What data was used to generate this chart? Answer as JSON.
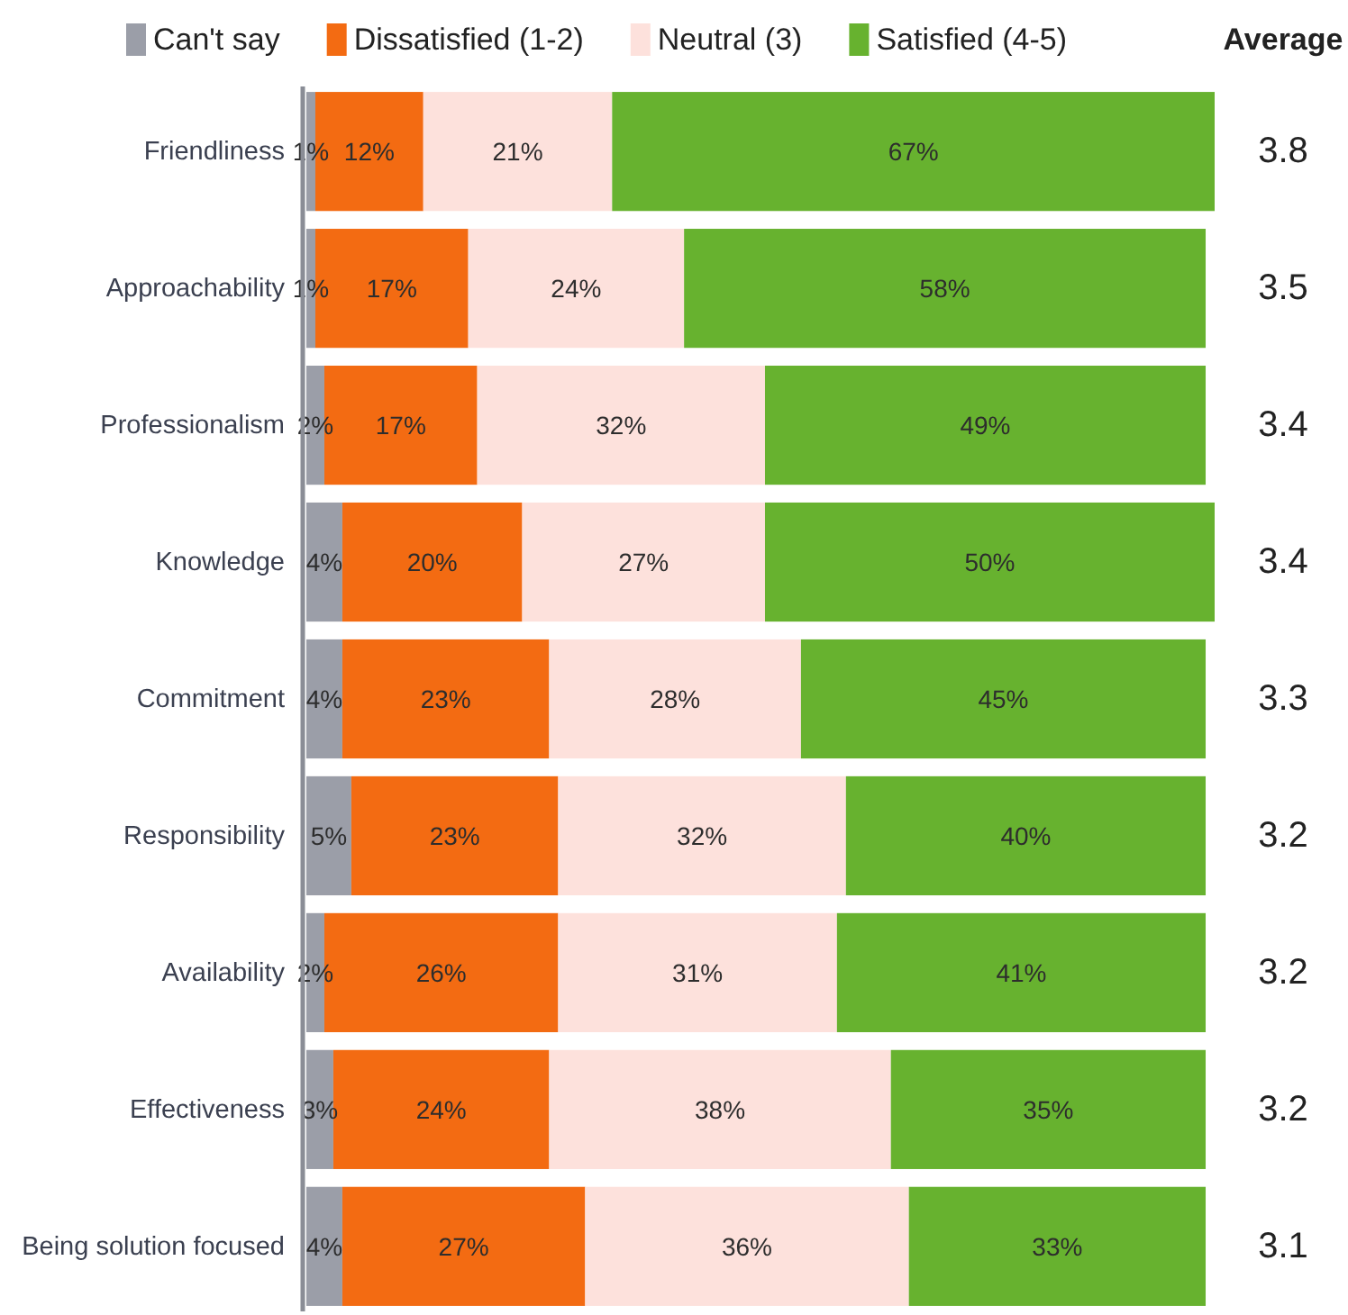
{
  "chart_data": {
    "type": "bar",
    "orientation": "horizontal",
    "stacked": true,
    "legend": "top",
    "tick_labels": "y",
    "xlim": [
      0,
      101
    ],
    "categories": [
      "Friendliness",
      "Approachability",
      "Professionalism",
      "Knowledge",
      "Commitment",
      "Responsibility",
      "Availability",
      "Effectiveness",
      "Being solution focused"
    ],
    "series": [
      {
        "name": "Can't say",
        "color": "#9b9ea8",
        "values": [
          1,
          1,
          2,
          4,
          4,
          5,
          2,
          3,
          4
        ],
        "value_labels": [
          "1%",
          "1%",
          "2%",
          "4%",
          "4%",
          "5%",
          "2%",
          "3%",
          "4%"
        ]
      },
      {
        "name": "Dissatisfied (1-2)",
        "color": "#f36b12",
        "values": [
          12,
          17,
          17,
          20,
          23,
          23,
          26,
          24,
          27
        ],
        "value_labels": [
          "12%",
          "17%",
          "17%",
          "20%",
          "23%",
          "23%",
          "26%",
          "24%",
          "27%"
        ]
      },
      {
        "name": "Neutral (3)",
        "color": "#fde1dc",
        "values": [
          21,
          24,
          32,
          27,
          28,
          32,
          31,
          38,
          36
        ],
        "value_labels": [
          "21%",
          "24%",
          "32%",
          "27%",
          "28%",
          "32%",
          "31%",
          "38%",
          "36%"
        ]
      },
      {
        "name": "Satisfied (4-5)",
        "color": "#67b22f",
        "values": [
          67,
          58,
          49,
          50,
          45,
          40,
          41,
          35,
          33
        ],
        "value_labels": [
          "67%",
          "58%",
          "49%",
          "50%",
          "45%",
          "40%",
          "41%",
          "35%",
          "33%"
        ]
      }
    ],
    "annotations": [
      "Average",
      "3.8",
      "3.5",
      "3.4",
      "3.4",
      "3.3",
      "3.2",
      "3.2",
      "3.2",
      "3.1"
    ]
  }
}
